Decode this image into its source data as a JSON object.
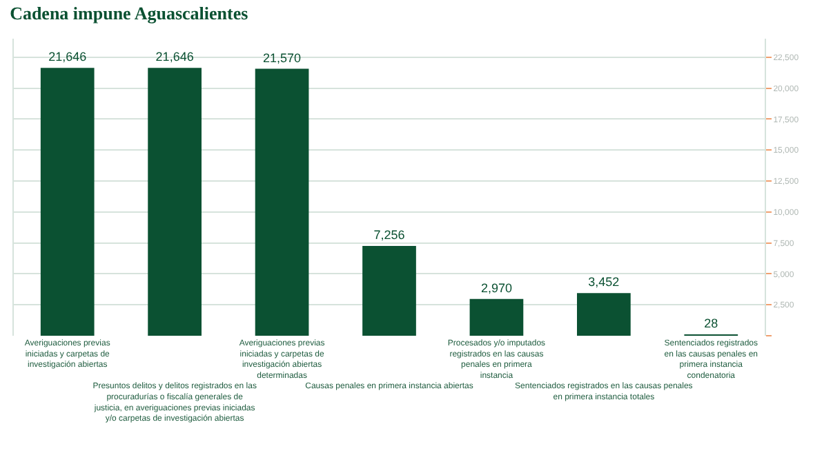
{
  "chart_data": {
    "type": "bar",
    "title": "Cadena impune Aguascalientes",
    "categories": [
      "Averiguaciones previas iniciadas y carpetas de investigación abiertas",
      "Presuntos delitos y delitos registrados en las procuradurías o fiscalía generales de justicia, en averiguaciones previas iniciadas y/o carpetas de investigación abiertas",
      "Averiguaciones previas iniciadas y carpetas de investigación abiertas determinadas",
      "Causas penales en primera instancia abiertas",
      "Procesados y/o imputados registrados en las causas penales en primera instancia",
      "Sentenciados registrados en las causas penales en primera instancia totales",
      "Sentenciados registrados en las causas penales en primera instancia condenatoria"
    ],
    "values": [
      21646,
      21646,
      21570,
      7256,
      2970,
      3452,
      28
    ],
    "value_labels": [
      "21,646",
      "21,646",
      "21,570",
      "7,256",
      "2,970",
      "3,452",
      "28"
    ],
    "color": "#0b5132",
    "grid": "y",
    "ylim": [
      0,
      24000
    ],
    "yticks": [
      {
        "value": 0,
        "label": null
      },
      {
        "value": 2500,
        "label": "2,500"
      },
      {
        "value": 5000,
        "label": "5,000"
      },
      {
        "value": 7500,
        "label": "7,500"
      },
      {
        "value": 10000,
        "label": "10,000"
      },
      {
        "value": 12500,
        "label": "12,500"
      },
      {
        "value": 15000,
        "label": "15,000"
      },
      {
        "value": 17500,
        "label": "17,500"
      },
      {
        "value": 20000,
        "label": "20,000"
      },
      {
        "value": 22500,
        "label": "22,500"
      }
    ]
  }
}
